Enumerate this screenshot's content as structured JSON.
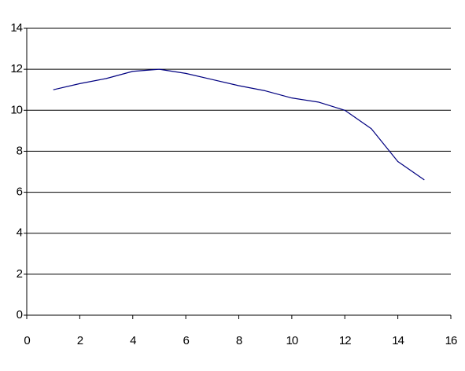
{
  "chart_data": {
    "type": "line",
    "x": [
      1,
      2,
      3,
      4,
      5,
      6,
      7,
      8,
      9,
      10,
      11,
      12,
      13,
      14,
      15
    ],
    "series": [
      {
        "color": "#000080",
        "values": [
          11,
          11.3,
          11.55,
          11.9,
          12,
          11.8,
          11.5,
          11.2,
          10.95,
          10.6,
          10.4,
          10,
          9.1,
          7.5,
          6.6
        ]
      }
    ],
    "xlim": [
      0,
      16
    ],
    "xticks": [
      0,
      2,
      4,
      6,
      8,
      10,
      12,
      14,
      16
    ],
    "ylim": [
      0,
      14
    ],
    "yticks": [
      0,
      2,
      4,
      6,
      8,
      10,
      12,
      14
    ],
    "grid": true
  }
}
